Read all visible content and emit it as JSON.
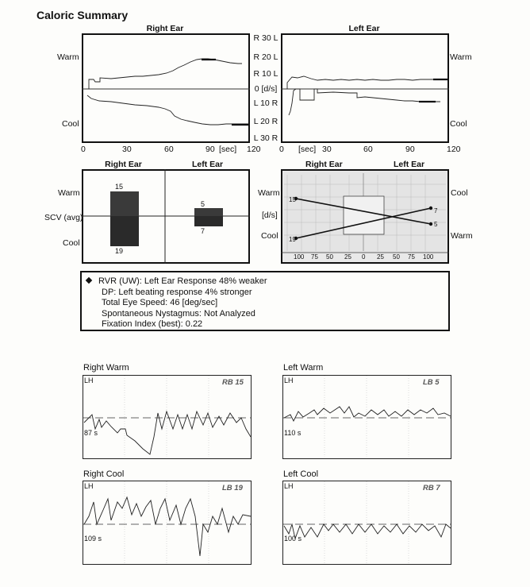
{
  "title": "Caloric Summary",
  "top_graph": {
    "right_ear": "Right Ear",
    "left_ear": "Left Ear",
    "warm": "Warm",
    "cool": "Cool",
    "mid_labels": [
      "R 30 L",
      "R 20 L",
      "R 10 L",
      "0 [d/s]",
      "L 10 R",
      "L 20 R",
      "L 30 R"
    ],
    "right_x_ticks": [
      "0",
      "30",
      "60",
      "90",
      "[sec]",
      "120"
    ],
    "left_x_ticks": [
      "0",
      "[sec]",
      "30",
      "60",
      "90",
      "120"
    ]
  },
  "bar_chart": {
    "right_ear": "Right Ear",
    "left_ear": "Left Ear",
    "warm": "Warm",
    "scv": "SCV (avg)",
    "cool": "Cool",
    "bars": [
      {
        "ear": "Right",
        "warm": 15,
        "cool": 19
      },
      {
        "ear": "Left",
        "warm": 5,
        "cool": 7
      }
    ]
  },
  "butterfly": {
    "right_ear": "Right Ear",
    "left_ear": "Left Ear",
    "warm_left": "Warm",
    "cool_left": "Cool",
    "cool_right": "Cool",
    "warm_right": "Warm",
    "unit": "[d/s]",
    "left_values": {
      "top": "15",
      "bottom": "19"
    },
    "right_values": {
      "top": "7",
      "bottom": "5"
    },
    "x_ticks": [
      "100",
      "75",
      "50",
      "25",
      "0",
      "25",
      "50",
      "75",
      "100"
    ]
  },
  "summary": {
    "lines": [
      "RVR (UW): Left Ear Response 48% weaker",
      "DP: Left beating response 4% stronger",
      "Total Eye Speed: 46 [deg/sec]",
      "Spontaneous Nystagmus: Not Analyzed",
      "Fixation Index (best): 0.22"
    ]
  },
  "nystagmus_panels": [
    {
      "title": "Right Warm",
      "channel": "LH",
      "code": "RB 15",
      "time": "87 s"
    },
    {
      "title": "Left Warm",
      "channel": "LH",
      "code": "LB 5",
      "time": "110 s"
    },
    {
      "title": "Right Cool",
      "channel": "LH",
      "code": "LB 19",
      "time": "109 s"
    },
    {
      "title": "Left Cool",
      "channel": "LH",
      "code": "RB 7",
      "time": "100 s"
    }
  ]
}
